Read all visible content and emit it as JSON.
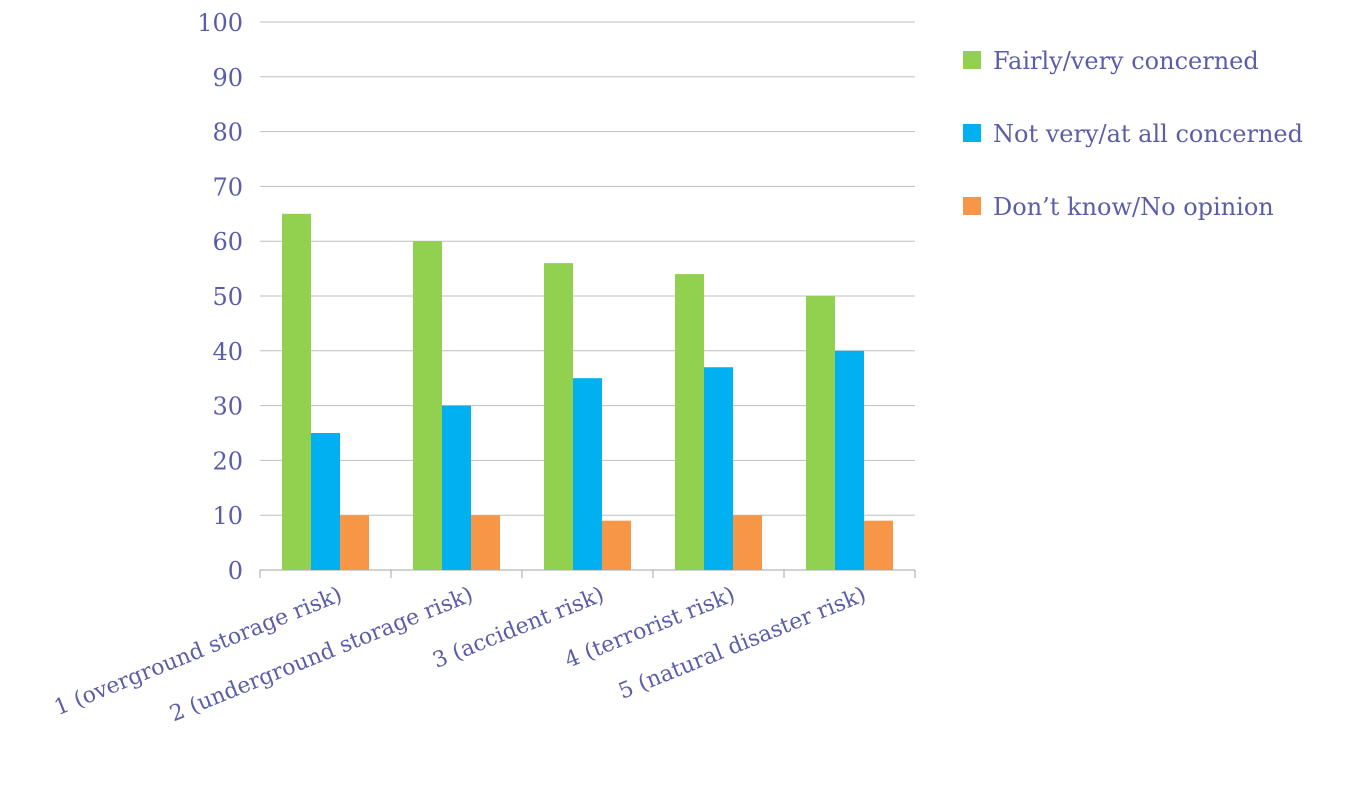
{
  "chart_data": {
    "type": "bar",
    "categories": [
      "1 (overground storage risk)",
      "2 (underground storage risk)",
      "3 (accident risk)",
      "4 (terrorist risk)",
      "5 (natural disaster risk)"
    ],
    "series": [
      {
        "name": "Fairly/very concerned",
        "color": "#92d050",
        "values": [
          65,
          60,
          56,
          54,
          50
        ]
      },
      {
        "name": "Not very/at all concerned",
        "color": "#00b0f0",
        "values": [
          25,
          30,
          35,
          37,
          40
        ]
      },
      {
        "name": "Don’t know/No opinion",
        "color": "#f79646",
        "values": [
          10,
          10,
          9,
          10,
          9
        ]
      }
    ],
    "ylim": [
      0,
      100
    ],
    "yticks": [
      0,
      10,
      20,
      30,
      40,
      50,
      60,
      70,
      80,
      90,
      100
    ],
    "title": "",
    "xlabel": "",
    "ylabel": "",
    "grid": true,
    "legend_position": "right"
  }
}
